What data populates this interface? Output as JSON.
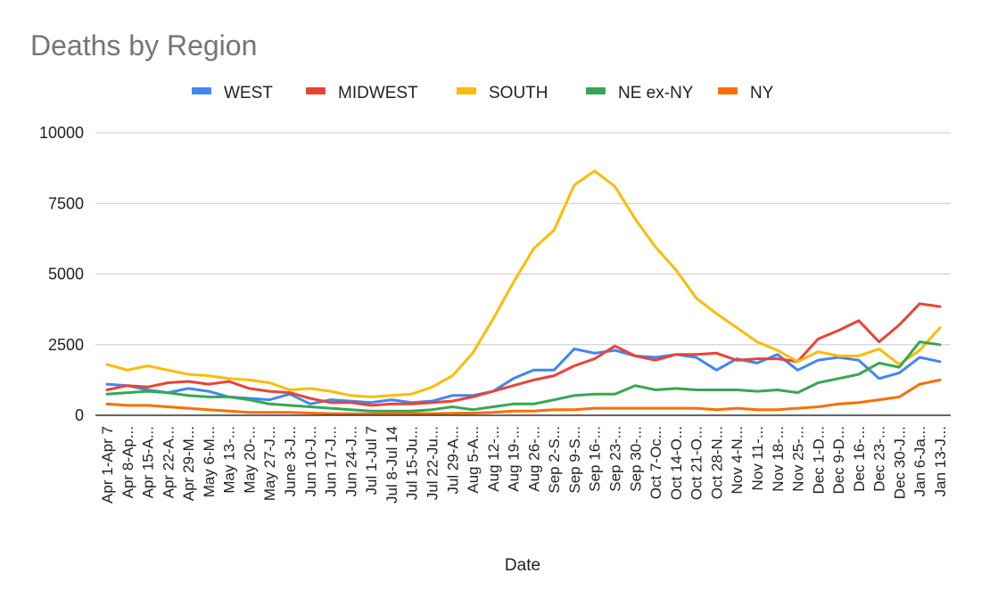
{
  "chart_data": {
    "type": "line",
    "title": "Deaths by Region",
    "xlabel": "Date",
    "ylabel": "",
    "ylim": [
      0,
      10000
    ],
    "yticks": [
      0,
      2500,
      5000,
      7500,
      10000
    ],
    "grid": true,
    "legend_position": "top",
    "categories": [
      "Apr 1-Apr 7",
      "Apr 8-Ap...",
      "Apr 15-A...",
      "Apr 22-A...",
      "Apr 29-M...",
      "May 6-M...",
      "May 13-...",
      "May 20-...",
      "May 27-J...",
      "June 3-J...",
      "Jun 10-J...",
      "Jun 17-J...",
      "Jun 24-J...",
      "Jul 1-Jul 7",
      "Jul 8-Jul 14",
      "Jul 15-Ju...",
      "Jul 22-Ju...",
      "Jul 29-A...",
      "Aug 5-A...",
      "Aug 12-...",
      "Aug 19-...",
      "Aug 26-...",
      "Sep 2-S...",
      "Sep 9-S...",
      "Sep 16-...",
      "Sep 23-...",
      "Sep 30-...",
      "Oct 7-Oc...",
      "Oct 14-O...",
      "Oct 21-O...",
      "Oct 28-N...",
      "Nov 4-N...",
      "Nov 11-...",
      "Nov 18-...",
      "Nov 25-...",
      "Dec 1-D...",
      "Dec 9-D...",
      "Dec 16-...",
      "Dec 23-...",
      "Dec 30-J...",
      "Jan 6-Ja...",
      "Jan 13-J..."
    ],
    "series": [
      {
        "name": "WEST",
        "color": "#4285f4",
        "values": [
          1100,
          1050,
          900,
          800,
          950,
          850,
          650,
          600,
          550,
          750,
          400,
          550,
          500,
          450,
          550,
          450,
          500,
          700,
          700,
          850,
          1300,
          1600,
          1600,
          2350,
          2200,
          2300,
          2100,
          2050,
          2150,
          2050,
          1600,
          2000,
          1850,
          2150,
          1600,
          1950,
          2050,
          1950,
          1300,
          1500,
          2050,
          1900
        ]
      },
      {
        "name": "MIDWEST",
        "color": "#ea4335",
        "values": [
          900,
          1050,
          1000,
          1150,
          1200,
          1100,
          1200,
          950,
          850,
          800,
          600,
          450,
          450,
          350,
          400,
          400,
          450,
          500,
          650,
          850,
          1050,
          1250,
          1400,
          1750,
          2000,
          2450,
          2100,
          1950,
          2150,
          2150,
          2200,
          1950,
          2000,
          2000,
          1900,
          2700,
          3000,
          3350,
          2600,
          3200,
          3950,
          3850
        ]
      },
      {
        "name": "SOUTH",
        "color": "#fbbc04",
        "values": [
          1800,
          1600,
          1750,
          1600,
          1450,
          1400,
          1300,
          1250,
          1150,
          900,
          950,
          850,
          700,
          650,
          700,
          750,
          1000,
          1400,
          2200,
          3400,
          4700,
          5900,
          6550,
          8150,
          8650,
          8100,
          6950,
          5950,
          5150,
          4150,
          3600,
          3100,
          2600,
          2300,
          1900,
          2250,
          2100,
          2100,
          2350,
          1800,
          2300,
          3100
        ]
      },
      {
        "name": "NE ex-NY",
        "color": "#34a853",
        "values": [
          750,
          800,
          850,
          800,
          700,
          650,
          650,
          550,
          400,
          350,
          300,
          250,
          200,
          150,
          150,
          150,
          200,
          300,
          200,
          300,
          400,
          400,
          550,
          700,
          750,
          750,
          1050,
          900,
          950,
          900,
          900,
          900,
          850,
          900,
          800,
          1150,
          1300,
          1450,
          1850,
          1700,
          2600,
          2500
        ]
      },
      {
        "name": "NY",
        "color": "#ff6d01",
        "values": [
          400,
          350,
          350,
          300,
          250,
          200,
          150,
          100,
          100,
          100,
          80,
          60,
          50,
          50,
          60,
          60,
          60,
          70,
          80,
          100,
          150,
          150,
          200,
          200,
          250,
          250,
          250,
          250,
          250,
          250,
          200,
          250,
          200,
          200,
          250,
          300,
          400,
          450,
          550,
          650,
          1100,
          1250
        ]
      }
    ]
  }
}
